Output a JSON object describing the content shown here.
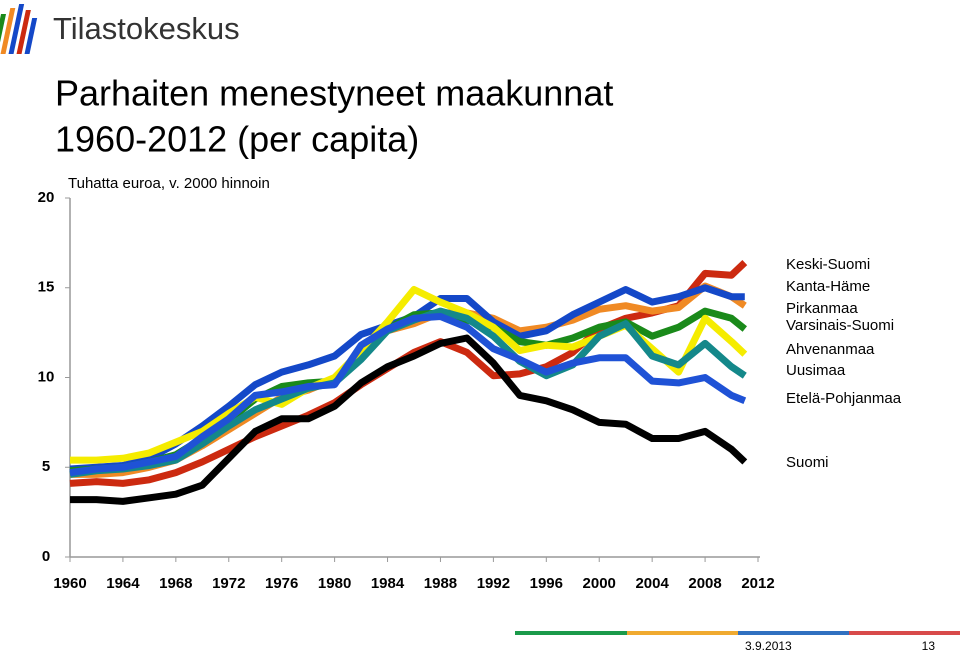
{
  "logo": "Tilastokeskus",
  "title": [
    "Parhaiten menestyneet maakunnat",
    "1960-2012 (per capita)"
  ],
  "footer": {
    "date": "3.9.2013",
    "page": "13"
  },
  "chart_data": {
    "type": "line",
    "annotation": "Tuhatta euroa, v. 2000 hinnoin",
    "x": [
      1960,
      1962,
      1964,
      1966,
      1968,
      1970,
      1972,
      1974,
      1976,
      1978,
      1980,
      1982,
      1984,
      1986,
      1988,
      1990,
      1992,
      1994,
      1996,
      1998,
      2000,
      2002,
      2004,
      2006,
      2008,
      2010,
      2011
    ],
    "xlim": [
      1960,
      2012
    ],
    "xticks": [
      1960,
      1964,
      1968,
      1972,
      1976,
      1980,
      1984,
      1988,
      1992,
      1996,
      2000,
      2004,
      2008,
      2012
    ],
    "ylim": [
      0,
      20
    ],
    "yticks": [
      0,
      5,
      10,
      15,
      20
    ],
    "series": [
      {
        "name": "Keski-Suomi",
        "color": "#cc2a10",
        "values": [
          4.1,
          4.2,
          4.1,
          4.3,
          4.7,
          5.3,
          6.0,
          6.7,
          7.3,
          7.9,
          8.6,
          9.6,
          10.5,
          11.4,
          12.0,
          11.4,
          10.1,
          10.2,
          10.6,
          11.4,
          12.7,
          13.3,
          13.6,
          14.0,
          15.8,
          15.7,
          16.4
        ]
      },
      {
        "name": "Kanta-Häme",
        "color": "#f08a24",
        "values": [
          4.6,
          4.6,
          4.7,
          5.0,
          5.4,
          6.2,
          7.1,
          8.0,
          8.9,
          9.3,
          9.9,
          11.3,
          12.6,
          13.0,
          13.6,
          13.6,
          13.3,
          12.6,
          12.8,
          13.2,
          13.8,
          14.0,
          13.7,
          13.9,
          15.1,
          14.5,
          14.0
        ]
      },
      {
        "name": "Pirkanmaa",
        "color": "#1448c8",
        "values": [
          4.9,
          5.0,
          5.1,
          5.5,
          6.3,
          7.3,
          8.4,
          9.6,
          10.3,
          10.7,
          11.2,
          12.4,
          12.9,
          13.4,
          14.4,
          14.4,
          13.1,
          12.3,
          12.6,
          13.5,
          14.2,
          14.9,
          14.2,
          14.5,
          15.0,
          14.5,
          14.5
        ]
      },
      {
        "name": "Varsinais-Suomi",
        "color": "#1a8a1a",
        "values": [
          4.8,
          4.9,
          5.0,
          5.3,
          5.7,
          6.6,
          7.6,
          8.8,
          9.5,
          9.7,
          9.8,
          11.5,
          12.7,
          13.5,
          13.6,
          13.2,
          12.8,
          12.0,
          11.8,
          12.2,
          12.8,
          13.1,
          12.3,
          12.8,
          13.7,
          13.3,
          12.7
        ]
      },
      {
        "name": "Ahvenanmaa",
        "color": "#f5ec00",
        "values": [
          5.4,
          5.4,
          5.5,
          5.8,
          6.4,
          7.0,
          8.0,
          8.9,
          8.5,
          9.4,
          10.0,
          11.5,
          13.1,
          14.9,
          14.2,
          13.6,
          12.8,
          11.5,
          11.8,
          11.7,
          12.3,
          12.9,
          11.6,
          10.3,
          13.3,
          12.0,
          11.3
        ]
      },
      {
        "name": "Uusimaa",
        "color": "#14888a",
        "values": [
          4.6,
          4.8,
          4.9,
          5.1,
          5.4,
          6.3,
          7.3,
          8.2,
          8.8,
          9.4,
          9.7,
          11.0,
          12.6,
          13.2,
          13.7,
          13.3,
          12.3,
          10.9,
          10.1,
          10.7,
          12.3,
          13.0,
          11.2,
          10.7,
          11.9,
          10.6,
          10.1
        ]
      },
      {
        "name": "Etelä-Pohjanmaa",
        "color": "#1f52d6",
        "values": [
          4.7,
          4.9,
          5.0,
          5.3,
          5.6,
          6.7,
          7.7,
          9.0,
          9.2,
          9.5,
          9.6,
          11.8,
          12.7,
          13.3,
          13.4,
          12.8,
          11.6,
          11.0,
          10.3,
          10.8,
          11.1,
          11.1,
          9.8,
          9.7,
          10.0,
          9.0,
          8.7
        ]
      },
      {
        "name": "Suomi",
        "color": "#000000",
        "values": [
          3.2,
          3.2,
          3.1,
          3.3,
          3.5,
          4.0,
          5.5,
          7.0,
          7.7,
          7.7,
          8.4,
          9.7,
          10.6,
          11.2,
          11.9,
          12.2,
          10.8,
          9.0,
          8.7,
          8.2,
          7.5,
          7.4,
          6.6,
          6.6,
          7.0,
          6.0,
          5.3
        ]
      }
    ]
  }
}
